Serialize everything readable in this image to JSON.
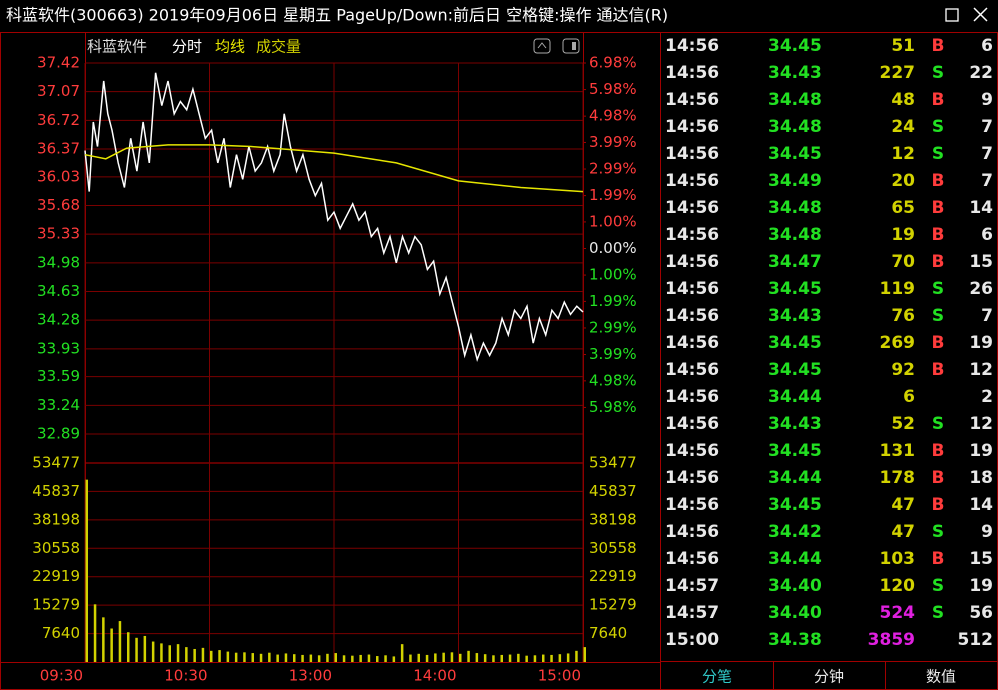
{
  "window": {
    "title": "科蓝软件(300663) 2019年09月06日 星期五 PageUp/Down:前后日 空格键:操作 通达信(R)"
  },
  "chart_data": [
    {
      "type": "line",
      "title": "科蓝软件",
      "series": [
        {
          "name": "分时",
          "color": "#ffffff",
          "x": [
            0,
            2,
            4,
            6,
            9,
            11,
            13,
            16,
            19,
            22,
            25,
            28,
            31,
            34,
            37,
            40,
            43,
            46,
            49,
            52,
            55,
            58,
            61,
            64,
            67,
            70,
            73,
            76,
            79,
            82,
            85,
            88,
            91,
            94,
            96,
            99,
            102,
            105,
            108,
            111,
            114,
            117,
            120,
            123,
            126,
            129,
            132,
            135,
            138,
            141,
            144,
            147,
            150,
            153,
            156,
            159,
            162,
            165,
            168,
            171,
            174,
            177,
            180,
            183,
            186,
            189,
            192,
            195,
            198,
            201,
            204,
            207,
            210,
            213,
            216,
            219,
            222,
            225,
            228,
            231,
            234,
            237,
            240
          ],
          "values": [
            36.35,
            35.85,
            36.7,
            36.4,
            37.2,
            36.8,
            36.6,
            36.2,
            35.9,
            36.5,
            36.1,
            36.7,
            36.2,
            37.3,
            36.9,
            37.2,
            36.8,
            36.95,
            36.85,
            37.1,
            36.8,
            36.5,
            36.6,
            36.2,
            36.5,
            35.9,
            36.3,
            36.0,
            36.4,
            36.1,
            36.2,
            36.4,
            36.1,
            36.3,
            36.8,
            36.4,
            36.1,
            36.3,
            36.0,
            35.8,
            35.95,
            35.5,
            35.6,
            35.4,
            35.55,
            35.7,
            35.5,
            35.6,
            35.3,
            35.4,
            35.1,
            35.3,
            34.98,
            35.3,
            35.1,
            35.3,
            35.2,
            34.9,
            35.0,
            34.6,
            34.8,
            34.5,
            34.2,
            33.85,
            34.1,
            33.8,
            34.0,
            33.85,
            34.0,
            34.3,
            34.1,
            34.4,
            34.3,
            34.45,
            34.0,
            34.3,
            34.1,
            34.4,
            34.3,
            34.5,
            34.35,
            34.45,
            34.38
          ]
        },
        {
          "name": "均线",
          "color": "#e6e600",
          "x": [
            0,
            10,
            20,
            40,
            60,
            80,
            100,
            120,
            150,
            180,
            210,
            240
          ],
          "values": [
            36.3,
            36.25,
            36.38,
            36.42,
            36.42,
            36.4,
            36.36,
            36.32,
            36.2,
            35.98,
            35.9,
            35.85
          ]
        }
      ],
      "xlim": [
        0,
        240
      ],
      "xticks": [
        {
          "value": 0,
          "label": "09:30"
        },
        {
          "value": 60,
          "label": "10:30"
        },
        {
          "value": 120,
          "label": "13:00"
        },
        {
          "value": 180,
          "label": "14:00"
        },
        {
          "value": 240,
          "label": "15:00"
        }
      ],
      "ylim": [
        32.89,
        37.42
      ],
      "yticks": [
        37.42,
        37.07,
        36.72,
        36.37,
        36.03,
        35.68,
        35.33,
        34.98,
        34.63,
        34.28,
        33.93,
        33.59,
        33.24,
        32.89
      ],
      "y2lim": [
        -6.98,
        6.98
      ],
      "y2ticks": [
        {
          "value": 6.98,
          "label": "6.98%"
        },
        {
          "value": 5.98,
          "label": "5.98%"
        },
        {
          "value": 4.98,
          "label": "4.98%"
        },
        {
          "value": 3.99,
          "label": "3.99%"
        },
        {
          "value": 2.99,
          "label": "2.99%"
        },
        {
          "value": 1.99,
          "label": "1.99%"
        },
        {
          "value": 1.0,
          "label": "1.00%"
        },
        {
          "value": 0,
          "label": "0.00%"
        },
        {
          "value": -1.0,
          "label": "1.00%"
        },
        {
          "value": -1.99,
          "label": "1.99%"
        },
        {
          "value": -2.99,
          "label": "2.99%"
        },
        {
          "value": -3.99,
          "label": "3.99%"
        },
        {
          "value": -4.98,
          "label": "4.98%"
        },
        {
          "value": -5.98,
          "label": "5.98%"
        }
      ],
      "grid": true
    },
    {
      "type": "bar",
      "title": "成交量",
      "color": "#d2d200",
      "x": [
        0,
        4,
        8,
        12,
        16,
        20,
        24,
        28,
        32,
        36,
        40,
        44,
        48,
        52,
        56,
        60,
        64,
        68,
        72,
        76,
        80,
        84,
        88,
        92,
        96,
        100,
        104,
        108,
        112,
        116,
        120,
        124,
        128,
        132,
        136,
        140,
        144,
        148,
        152,
        156,
        160,
        164,
        168,
        172,
        176,
        180,
        184,
        188,
        192,
        196,
        200,
        204,
        208,
        212,
        216,
        220,
        224,
        228,
        232,
        236,
        240
      ],
      "values": [
        49000,
        15500,
        12000,
        9000,
        11000,
        8000,
        6500,
        7000,
        5500,
        5000,
        4500,
        4800,
        4000,
        3500,
        3800,
        3000,
        3200,
        2800,
        2500,
        2600,
        2400,
        2200,
        2500,
        2000,
        2300,
        2100,
        1900,
        2000,
        1800,
        2200,
        2400,
        1800,
        1700,
        1900,
        2000,
        1600,
        1800,
        1500,
        4800,
        2000,
        2200,
        1900,
        2300,
        2500,
        2600,
        2200,
        3000,
        2400,
        2100,
        1800,
        1900,
        2000,
        2200,
        1700,
        1800,
        2000,
        1900,
        2100,
        2300,
        3000,
        4000
      ],
      "xlim": [
        0,
        240
      ],
      "ylim": [
        0,
        53477
      ],
      "yticks": [
        53477,
        45837,
        38198,
        30558,
        22919,
        15279,
        7640
      ]
    }
  ],
  "trades": {
    "rows": [
      [
        "14:56",
        "34.45",
        "51",
        "B",
        "6"
      ],
      [
        "14:56",
        "34.43",
        "227",
        "S",
        "22"
      ],
      [
        "14:56",
        "34.48",
        "48",
        "B",
        "9"
      ],
      [
        "14:56",
        "34.48",
        "24",
        "S",
        "7"
      ],
      [
        "14:56",
        "34.45",
        "12",
        "S",
        "7"
      ],
      [
        "14:56",
        "34.49",
        "20",
        "B",
        "7"
      ],
      [
        "14:56",
        "34.48",
        "65",
        "B",
        "14"
      ],
      [
        "14:56",
        "34.48",
        "19",
        "B",
        "6"
      ],
      [
        "14:56",
        "34.47",
        "70",
        "B",
        "15"
      ],
      [
        "14:56",
        "34.45",
        "119",
        "S",
        "26"
      ],
      [
        "14:56",
        "34.43",
        "76",
        "S",
        "7"
      ],
      [
        "14:56",
        "34.45",
        "269",
        "B",
        "19"
      ],
      [
        "14:56",
        "34.45",
        "92",
        "B",
        "12"
      ],
      [
        "14:56",
        "34.44",
        "6",
        null,
        "2"
      ],
      [
        "14:56",
        "34.43",
        "52",
        "S",
        "12"
      ],
      [
        "14:56",
        "34.45",
        "131",
        "B",
        "19"
      ],
      [
        "14:56",
        "34.44",
        "178",
        "B",
        "18"
      ],
      [
        "14:56",
        "34.45",
        "47",
        "B",
        "14"
      ],
      [
        "14:56",
        "34.42",
        "47",
        "S",
        "9"
      ],
      [
        "14:56",
        "34.44",
        "103",
        "B",
        "15"
      ],
      [
        "14:57",
        "34.40",
        "120",
        "S",
        "19"
      ],
      [
        "14:57",
        "34.40",
        "524",
        "S",
        "56"
      ],
      [
        "15:00",
        "34.38",
        "3859",
        null,
        "512"
      ]
    ]
  },
  "tabs": [
    "分笔",
    "分钟",
    "数值"
  ]
}
